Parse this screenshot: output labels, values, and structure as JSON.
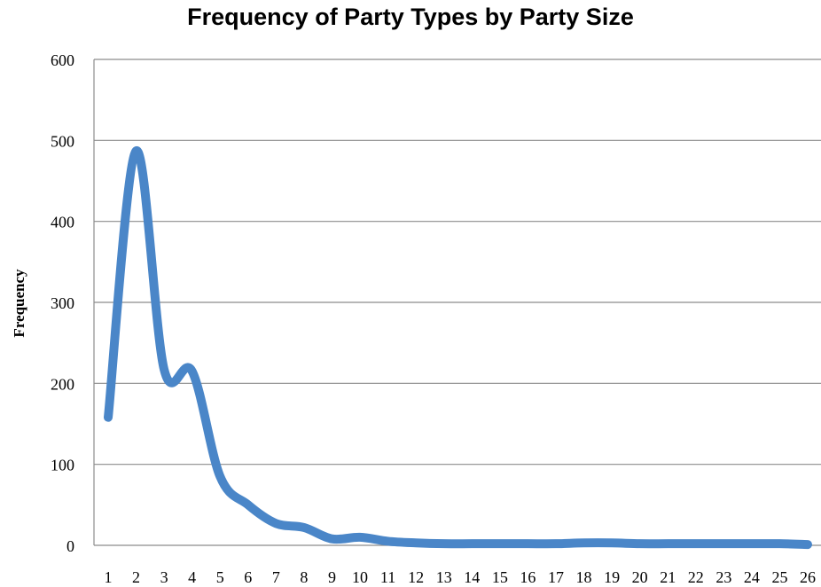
{
  "chart_data": {
    "type": "line",
    "title": "Frequency of Party Types by Party Size",
    "xlabel": "",
    "ylabel": "Frequency",
    "categories": [
      "1",
      "2",
      "3",
      "4",
      "5",
      "6",
      "7",
      "8",
      "9",
      "10",
      "11",
      "12",
      "13",
      "14",
      "15",
      "16",
      "17",
      "18",
      "19",
      "20",
      "21",
      "22",
      "23",
      "24",
      "25",
      "26"
    ],
    "series": [
      {
        "values": [
          158,
          487,
          217,
          215,
          85,
          50,
          27,
          22,
          8,
          10,
          5,
          3,
          2,
          2,
          2,
          2,
          2,
          3,
          3,
          2,
          2,
          2,
          2,
          2,
          2,
          1
        ]
      }
    ],
    "ylim": [
      0,
      600
    ],
    "yticks": [
      0,
      100,
      200,
      300,
      400,
      500,
      600
    ],
    "grid": true,
    "line_color": "#4a86c8"
  }
}
